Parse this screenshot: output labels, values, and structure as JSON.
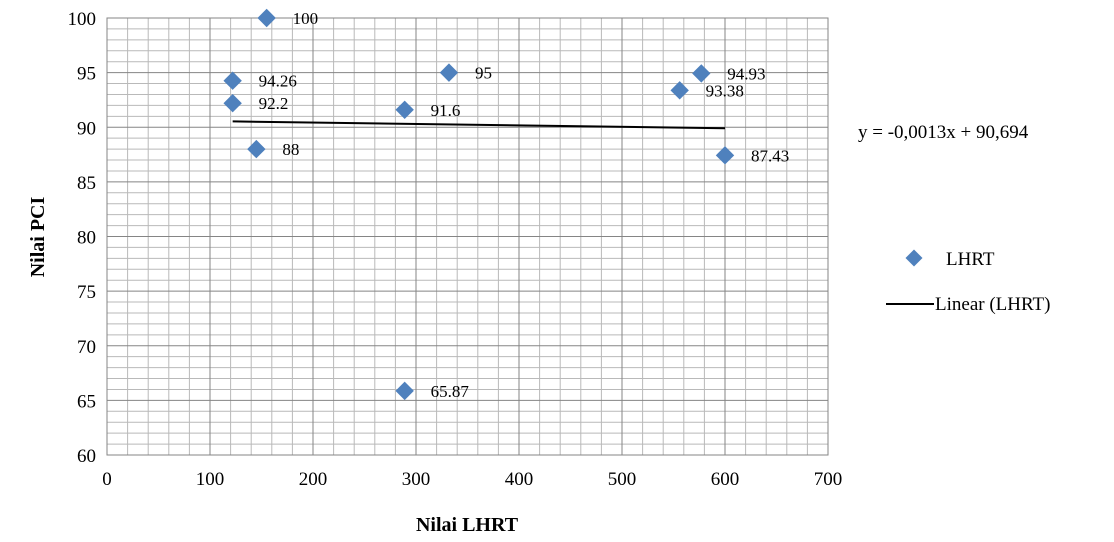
{
  "chart_data": {
    "type": "scatter",
    "xlabel": "Nilai LHRT",
    "ylabel": "Nilai PCI",
    "xlim": [
      0,
      700
    ],
    "ylim": [
      60,
      100
    ],
    "x_ticks": [
      "0",
      "100",
      "200",
      "300",
      "400",
      "500",
      "600",
      "700"
    ],
    "y_ticks": [
      "60",
      "65",
      "70",
      "75",
      "80",
      "85",
      "90",
      "95",
      "100"
    ],
    "grid": true,
    "series": [
      {
        "name": "LHRT",
        "marker": "diamond",
        "color": "#4F81BD",
        "points": [
          {
            "x": 155,
            "y": 100,
            "label": "100"
          },
          {
            "x": 122,
            "y": 94.26,
            "label": "94.26"
          },
          {
            "x": 122,
            "y": 92.2,
            "label": "92.2"
          },
          {
            "x": 145,
            "y": 88,
            "label": "88"
          },
          {
            "x": 332,
            "y": 95,
            "label": "95"
          },
          {
            "x": 289,
            "y": 91.6,
            "label": "91.6"
          },
          {
            "x": 289,
            "y": 65.87,
            "label": "65.87"
          },
          {
            "x": 577,
            "y": 94.93,
            "label": "94.93"
          },
          {
            "x": 556,
            "y": 93.38,
            "label": "93.38"
          },
          {
            "x": 600,
            "y": 87.43,
            "label": "87.43"
          }
        ]
      }
    ],
    "trendline": {
      "name": "Linear (LHRT)",
      "slope": -0.0013,
      "intercept": 90.694,
      "x_range": [
        122,
        600
      ],
      "color": "#000000"
    },
    "equation": "y = -0,0013x + 90,694",
    "legend": {
      "position": "right",
      "entries": [
        "LHRT",
        "Linear (LHRT)"
      ]
    }
  }
}
